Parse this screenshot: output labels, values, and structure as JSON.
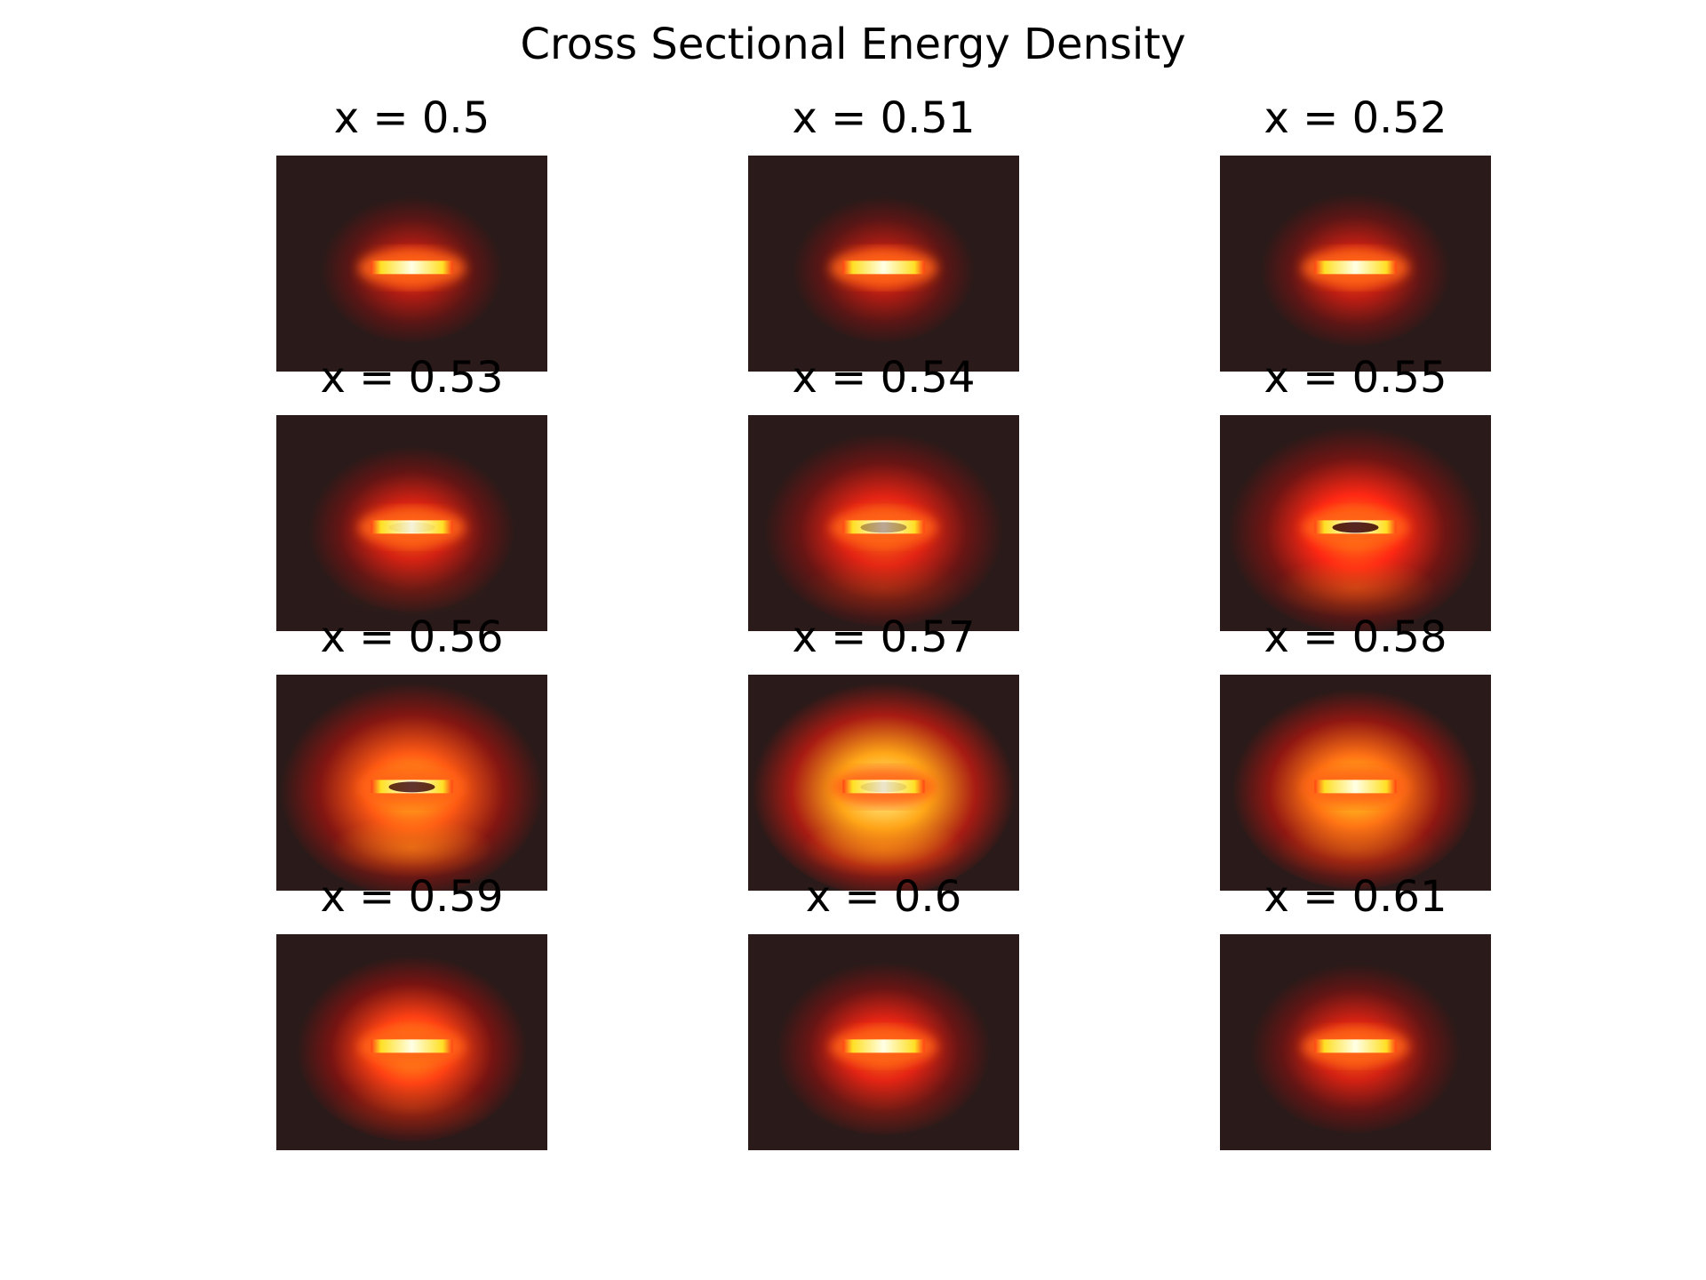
{
  "chart_data": {
    "type": "heatmap",
    "title": "Cross Sectional Energy Density",
    "grid": {
      "rows": 4,
      "cols": 3
    },
    "axes_visible": false,
    "colormap": "hot",
    "panels": [
      {
        "label": "x = 0.5",
        "x": 0.5,
        "intensity": 0.35,
        "spread": 0.45,
        "center_dark": 0.0,
        "lower_glow": 0.0
      },
      {
        "label": "x = 0.51",
        "x": 0.51,
        "intensity": 0.35,
        "spread": 0.45,
        "center_dark": 0.0,
        "lower_glow": 0.0
      },
      {
        "label": "x = 0.52",
        "x": 0.52,
        "intensity": 0.38,
        "spread": 0.5,
        "center_dark": 0.0,
        "lower_glow": 0.0
      },
      {
        "label": "x = 0.53",
        "x": 0.53,
        "intensity": 0.42,
        "spread": 0.6,
        "center_dark": 0.05,
        "lower_glow": 0.05
      },
      {
        "label": "x = 0.54",
        "x": 0.54,
        "intensity": 0.45,
        "spread": 0.8,
        "center_dark": 0.35,
        "lower_glow": 0.15
      },
      {
        "label": "x = 0.55",
        "x": 0.55,
        "intensity": 0.5,
        "spread": 0.9,
        "center_dark": 0.85,
        "lower_glow": 0.35
      },
      {
        "label": "x = 0.56",
        "x": 0.56,
        "intensity": 0.6,
        "spread": 0.95,
        "center_dark": 0.8,
        "lower_glow": 0.6
      },
      {
        "label": "x = 0.57",
        "x": 0.57,
        "intensity": 0.75,
        "spread": 0.95,
        "center_dark": 0.1,
        "lower_glow": 0.55
      },
      {
        "label": "x = 0.58",
        "x": 0.58,
        "intensity": 0.65,
        "spread": 0.85,
        "center_dark": 0.0,
        "lower_glow": 0.25
      },
      {
        "label": "x = 0.59",
        "x": 0.59,
        "intensity": 0.55,
        "spread": 0.75,
        "center_dark": 0.0,
        "lower_glow": 0.15
      },
      {
        "label": "x = 0.6",
        "x": 0.6,
        "intensity": 0.45,
        "spread": 0.65,
        "center_dark": 0.0,
        "lower_glow": 0.05
      },
      {
        "label": "x = 0.61",
        "x": 0.61,
        "intensity": 0.42,
        "spread": 0.62,
        "center_dark": 0.0,
        "lower_glow": 0.0
      }
    ]
  }
}
